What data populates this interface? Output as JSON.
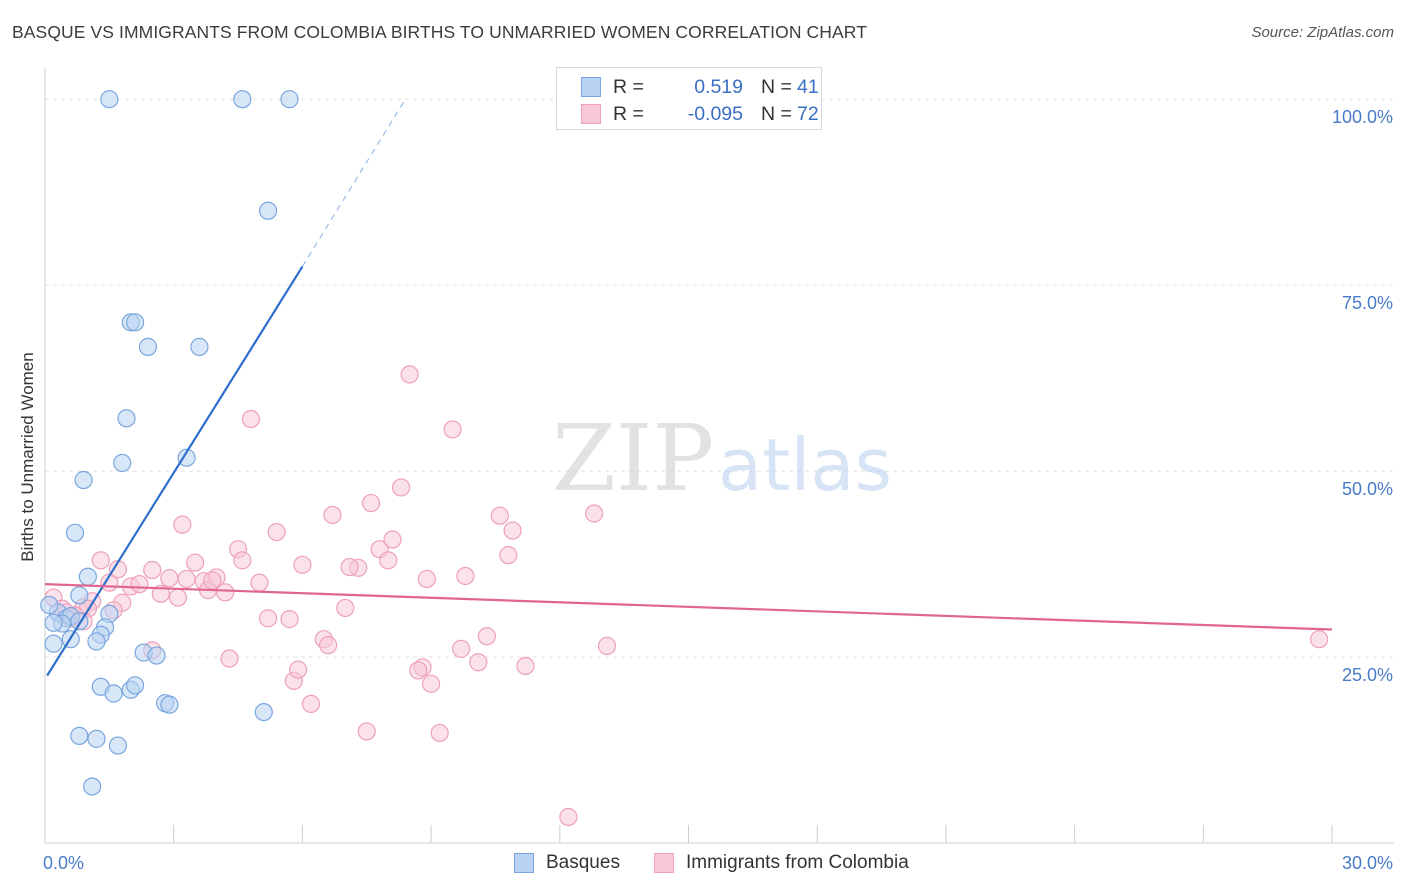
{
  "header": {
    "title": "BASQUE VS IMMIGRANTS FROM COLOMBIA BIRTHS TO UNMARRIED WOMEN CORRELATION CHART",
    "source": "Source: ZipAtlas.com"
  },
  "watermark": {
    "zip": "ZIP",
    "atlas": "atlas"
  },
  "legend": {
    "r_label": "R =",
    "n_label": "N =",
    "basque": {
      "r": "0.519",
      "n": "41"
    },
    "colombia": {
      "r": "-0.095",
      "n": "72"
    }
  },
  "colors": {
    "basque_fill": "#b8d3f2",
    "basque_stroke": "#7aa6de",
    "basque_line": "#2e6fcc",
    "colombia_fill": "#f8c8d8",
    "colombia_stroke": "#eea0bb",
    "colombia_line": "#e0668f",
    "tick_label": "#4a7bc8"
  },
  "chart_data": {
    "type": "scatter",
    "title": "BASQUE VS IMMIGRANTS FROM COLOMBIA BIRTHS TO UNMARRIED WOMEN CORRELATION CHART",
    "ylabel": "Births to Unmarried Women",
    "xlabel": "",
    "xlim": [
      0,
      30
    ],
    "ylim": [
      0,
      105
    ],
    "x_tick_labels": [
      {
        "value": 0,
        "label": "0.0%"
      },
      {
        "value": 30,
        "label": "30.0%"
      }
    ],
    "y_tick_labels": [
      {
        "value": 25,
        "label": "25.0%"
      },
      {
        "value": 50,
        "label": "50.0%"
      },
      {
        "value": 75,
        "label": "75.0%"
      },
      {
        "value": 100,
        "label": "100.0%"
      }
    ],
    "grid": "horizontal dashed",
    "legend_position": "top-center",
    "series": [
      {
        "name": "Basques",
        "points": [
          [
            1.5,
            100
          ],
          [
            4.6,
            100
          ],
          [
            5.7,
            100
          ],
          [
            5.2,
            85
          ],
          [
            2.0,
            70
          ],
          [
            2.1,
            70
          ],
          [
            2.4,
            66.7
          ],
          [
            3.6,
            66.7
          ],
          [
            1.9,
            57.1
          ],
          [
            1.8,
            51.1
          ],
          [
            3.3,
            51.8
          ],
          [
            0.9,
            48.8
          ],
          [
            0.7,
            41.7
          ],
          [
            1.0,
            35.8
          ],
          [
            0.8,
            33.3
          ],
          [
            1.5,
            30.8
          ],
          [
            0.3,
            31
          ],
          [
            0.5,
            30.2
          ],
          [
            0.6,
            30.5
          ],
          [
            0.4,
            29.5
          ],
          [
            0.2,
            29.6
          ],
          [
            0.8,
            29.8
          ],
          [
            1.4,
            29
          ],
          [
            1.3,
            28
          ],
          [
            0.6,
            27.4
          ],
          [
            1.2,
            27.1
          ],
          [
            0.2,
            26.8
          ],
          [
            2.3,
            25.6
          ],
          [
            2.6,
            25.2
          ],
          [
            1.3,
            21
          ],
          [
            2.0,
            20.6
          ],
          [
            2.1,
            21.2
          ],
          [
            1.6,
            20.1
          ],
          [
            2.8,
            18.8
          ],
          [
            2.9,
            18.6
          ],
          [
            5.1,
            17.6
          ],
          [
            0.8,
            14.4
          ],
          [
            1.2,
            14
          ],
          [
            1.7,
            13.1
          ],
          [
            1.1,
            7.6
          ],
          [
            0.1,
            32
          ]
        ]
      },
      {
        "name": "Immigrants from Colombia",
        "points": [
          [
            0.2,
            33
          ],
          [
            0.4,
            31.5
          ],
          [
            0.6,
            30.2
          ],
          [
            0.9,
            31.7
          ],
          [
            1.1,
            32.5
          ],
          [
            1.3,
            38
          ],
          [
            1.5,
            35
          ],
          [
            1.7,
            36.8
          ],
          [
            1.8,
            32.3
          ],
          [
            2.0,
            34.5
          ],
          [
            2.2,
            34.8
          ],
          [
            2.5,
            36.7
          ],
          [
            2.7,
            33.5
          ],
          [
            2.9,
            35.6
          ],
          [
            3.1,
            33
          ],
          [
            3.2,
            42.8
          ],
          [
            3.3,
            35.5
          ],
          [
            3.5,
            37.7
          ],
          [
            3.7,
            35.2
          ],
          [
            3.8,
            34
          ],
          [
            4.0,
            35.7
          ],
          [
            4.2,
            33.7
          ],
          [
            4.5,
            39.5
          ],
          [
            4.6,
            38
          ],
          [
            4.8,
            57
          ],
          [
            5.0,
            35
          ],
          [
            5.2,
            30.2
          ],
          [
            5.4,
            41.8
          ],
          [
            5.7,
            30.1
          ],
          [
            6.0,
            37.4
          ],
          [
            6.5,
            27.4
          ],
          [
            6.6,
            26.6
          ],
          [
            6.7,
            44.1
          ],
          [
            7.0,
            31.6
          ],
          [
            7.3,
            37
          ],
          [
            7.6,
            45.7
          ],
          [
            7.8,
            39.5
          ],
          [
            8.0,
            38
          ],
          [
            8.1,
            40.8
          ],
          [
            8.3,
            47.8
          ],
          [
            8.5,
            63
          ],
          [
            8.8,
            23.6
          ],
          [
            8.9,
            35.5
          ],
          [
            9.0,
            21.4
          ],
          [
            9.2,
            14.8
          ],
          [
            9.5,
            55.6
          ],
          [
            9.7,
            26.1
          ],
          [
            9.8,
            35.9
          ],
          [
            10.1,
            24.3
          ],
          [
            10.3,
            27.8
          ],
          [
            10.6,
            44
          ],
          [
            10.8,
            38.7
          ],
          [
            10.9,
            42
          ],
          [
            11.2,
            23.8
          ],
          [
            12.8,
            44.3
          ],
          [
            12.2,
            3.5
          ],
          [
            13.1,
            26.5
          ],
          [
            4.3,
            24.8
          ],
          [
            5.8,
            21.8
          ],
          [
            5.9,
            23.3
          ],
          [
            6.2,
            18.7
          ],
          [
            7.5,
            15
          ],
          [
            8.7,
            23.2
          ],
          [
            2.5,
            25.9
          ],
          [
            1.6,
            31.3
          ],
          [
            1.0,
            31.5
          ],
          [
            0.7,
            30.6
          ],
          [
            0.5,
            31
          ],
          [
            29.7,
            27.4
          ],
          [
            0.9,
            29.8
          ],
          [
            3.9,
            35.3
          ],
          [
            7.1,
            37.1
          ]
        ]
      }
    ],
    "trend_lines": [
      {
        "series": "Basques",
        "from": [
          0.05,
          22.5
        ],
        "to": [
          6.0,
          77.5
        ],
        "dashed_extension_to": [
          8.4,
          100
        ]
      },
      {
        "series": "Immigrants from Colombia",
        "from": [
          0,
          34.8
        ],
        "to": [
          30,
          28.7
        ]
      }
    ]
  },
  "bottom_legend": {
    "basques": "Basques",
    "colombia": "Immigrants from Colombia"
  }
}
